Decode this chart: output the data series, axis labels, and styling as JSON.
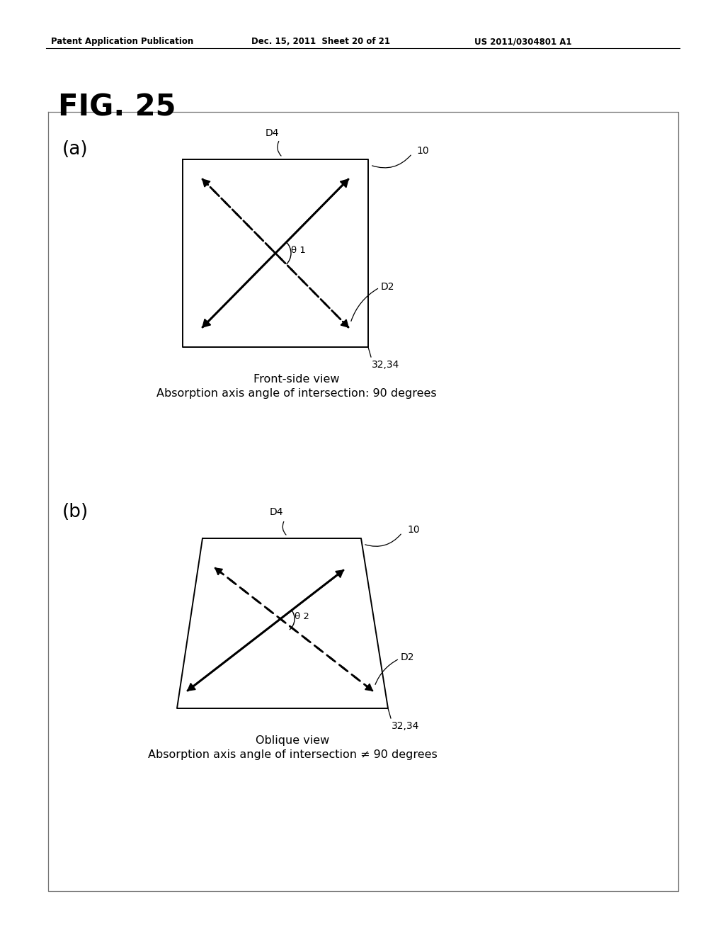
{
  "title": "FIG. 25",
  "header_left": "Patent Application Publication",
  "header_mid": "Dec. 15, 2011  Sheet 20 of 21",
  "header_right": "US 2011/0304801 A1",
  "bg_color": "#ffffff",
  "panel_a_label": "(a)",
  "panel_b_label": "(b)",
  "label_10": "10",
  "label_D4": "D4",
  "label_D2": "D2",
  "label_3234": "32,34",
  "label_theta1": "θ 1",
  "label_theta2": "θ 2",
  "caption_a_line1": "Front-side view",
  "caption_a_line2": "Absorption axis angle of intersection: 90 degrees",
  "caption_b_line1": "Oblique view",
  "caption_b_line2": "Absorption axis angle of intersection ≠ 90 degrees"
}
